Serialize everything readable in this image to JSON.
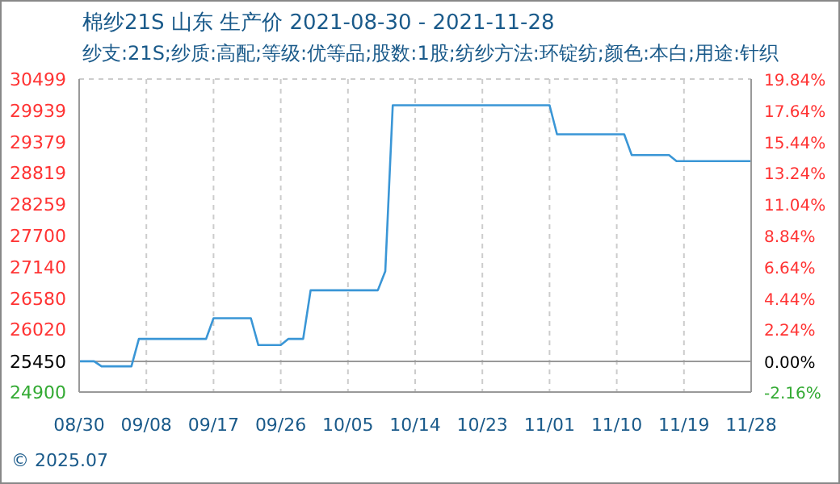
{
  "chart_data": {
    "type": "line",
    "title": "棉纱21S 山东 生产价 2021-08-30 - 2021-11-28",
    "subtitle": "纱支:21S;纱质:高配;等级:优等品;股数:1股;纺纱方法:环锭纺;颜色:本白;用途:针织",
    "x": [
      "2021-08-30",
      "2021-09-01",
      "2021-09-02",
      "2021-09-06",
      "2021-09-07",
      "2021-09-16",
      "2021-09-17",
      "2021-09-22",
      "2021-09-23",
      "2021-09-26",
      "2021-09-27",
      "2021-09-29",
      "2021-09-30",
      "2021-10-09",
      "2021-10-10",
      "2021-10-11",
      "2021-11-01",
      "2021-11-02",
      "2021-11-11",
      "2021-11-12",
      "2021-11-17",
      "2021-11-18",
      "2021-11-28"
    ],
    "series": [
      {
        "color": "#3a96d6",
        "values": [
          25450,
          25450,
          25360,
          25360,
          25850,
          25850,
          26220,
          26220,
          25740,
          25740,
          25850,
          25850,
          26720,
          26720,
          27060,
          30030,
          30030,
          29510,
          29510,
          29140,
          29140,
          29030,
          29030
        ]
      }
    ],
    "xlim": [
      "2021-08-30",
      "2021-11-28"
    ],
    "xticks": [
      {
        "value": "2021-08-30",
        "label": "08/30"
      },
      {
        "value": "2021-09-08",
        "label": "09/08"
      },
      {
        "value": "2021-09-17",
        "label": "09/17"
      },
      {
        "value": "2021-09-26",
        "label": "09/26"
      },
      {
        "value": "2021-10-05",
        "label": "10/05"
      },
      {
        "value": "2021-10-14",
        "label": "10/14"
      },
      {
        "value": "2021-10-23",
        "label": "10/23"
      },
      {
        "value": "2021-11-01",
        "label": "11/01"
      },
      {
        "value": "2021-11-10",
        "label": "11/10"
      },
      {
        "value": "2021-11-19",
        "label": "11/19"
      },
      {
        "value": "2021-11-28",
        "label": "11/28"
      }
    ],
    "ylim": [
      24900,
      30499
    ],
    "yticks": [
      24900,
      25450,
      26020,
      26580,
      27140,
      27700,
      28259,
      28819,
      29379,
      29939,
      30499
    ],
    "y2lim": [
      -2.16,
      19.84
    ],
    "y2ticks": [
      {
        "value": -2.16,
        "label": "-2.16%"
      },
      {
        "value": 0,
        "label": "0.00%"
      },
      {
        "value": 2.24,
        "label": "2.24%"
      },
      {
        "value": 4.44,
        "label": "4.44%"
      },
      {
        "value": 6.64,
        "label": "6.64%"
      },
      {
        "value": 8.84,
        "label": "8.84%"
      },
      {
        "value": 11.04,
        "label": "11.04%"
      },
      {
        "value": 13.24,
        "label": "13.24%"
      },
      {
        "value": 15.44,
        "label": "15.44%"
      },
      {
        "value": 17.64,
        "label": "17.64%"
      },
      {
        "value": 19.84,
        "label": "19.84%"
      }
    ],
    "ref_lines": [
      {
        "axis": "y",
        "value": 25450,
        "color": "#999999"
      }
    ],
    "grid": true,
    "marker": "none",
    "line_style": "solid",
    "annotations": [
      "© 2025.07"
    ]
  }
}
